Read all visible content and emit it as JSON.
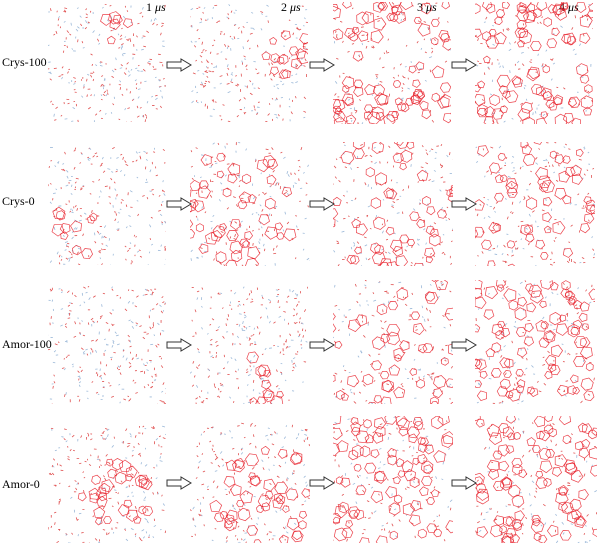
{
  "time_labels": [
    {
      "value": "1",
      "unit": "μs"
    },
    {
      "value": "2",
      "unit": "μs"
    },
    {
      "value": "3",
      "unit": "μs"
    },
    {
      "value": "4",
      "unit": "μs"
    }
  ],
  "rows": [
    {
      "label": "Crys-100"
    },
    {
      "label": "Crys-0"
    },
    {
      "label": "Amor-100"
    },
    {
      "label": "Amor-0"
    }
  ],
  "colors": {
    "cage": "#e8202a",
    "oxygen": "#e05050",
    "hydrogen": "#9bb8d8",
    "arrow": "#333333"
  }
}
